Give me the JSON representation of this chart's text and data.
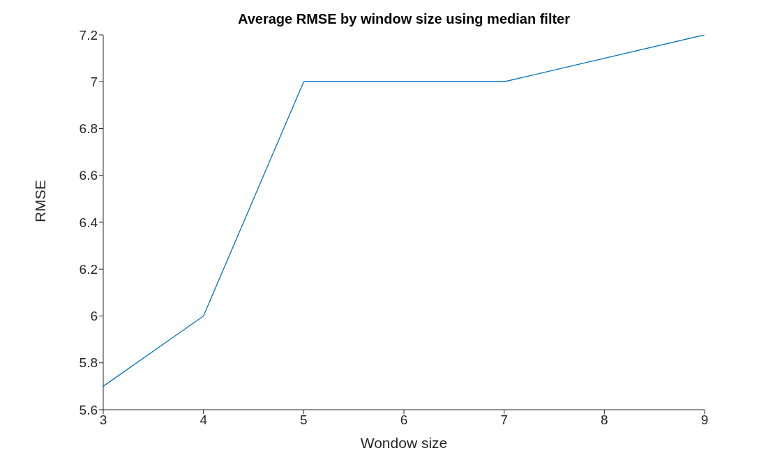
{
  "chart_data": {
    "type": "line",
    "title": "Average RMSE by window size using median filter",
    "xlabel": "Wondow size",
    "ylabel": "RMSE",
    "x": [
      3,
      4,
      5,
      6,
      7,
      8,
      9
    ],
    "series": [
      {
        "color": "#0072bd",
        "values": [
          5.7,
          6.0,
          7.0,
          7.0,
          7.0,
          7.1,
          7.2
        ]
      }
    ],
    "xlim": [
      3,
      9
    ],
    "xticks": [
      3,
      4,
      5,
      6,
      7,
      8,
      9
    ],
    "ylim": [
      5.6,
      7.2
    ],
    "yticks": [
      5.6,
      5.8,
      6,
      6.2,
      6.4,
      6.6,
      6.8,
      7,
      7.2
    ],
    "grid": false,
    "legend": false,
    "marker": "none",
    "line_style": "solid"
  }
}
